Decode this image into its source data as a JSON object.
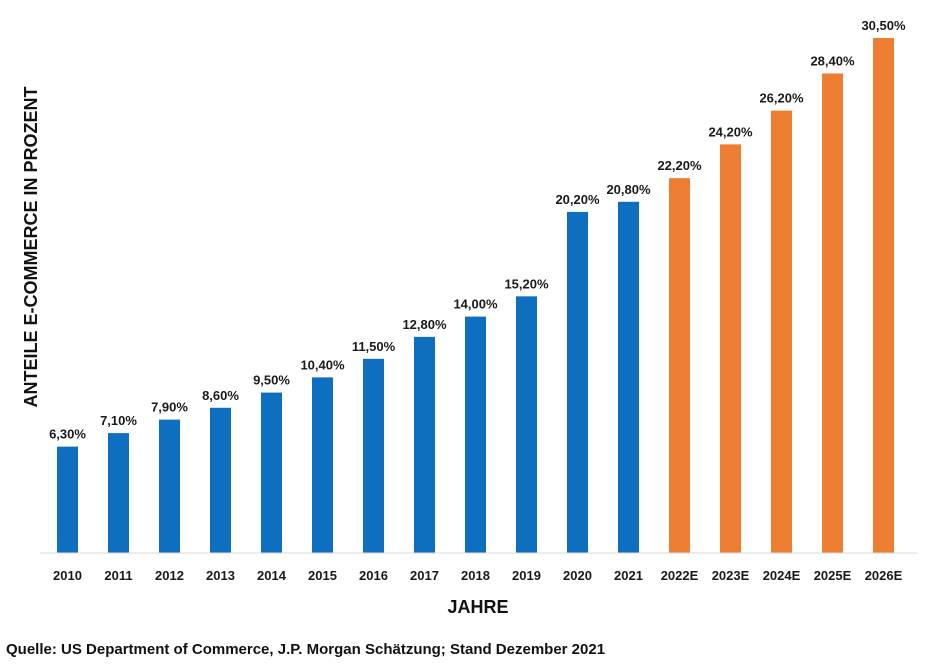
{
  "chart_data": {
    "type": "bar",
    "title": "",
    "xlabel": "JAHRE",
    "ylabel": "ANTEILE E-COMMERCE IN PROZENT",
    "ylim": [
      0,
      30.5
    ],
    "grid": false,
    "categories": [
      "2010",
      "2011",
      "2012",
      "2013",
      "2014",
      "2015",
      "2016",
      "2017",
      "2018",
      "2019",
      "2020",
      "2021",
      "2022E",
      "2023E",
      "2024E",
      "2025E",
      "2026E"
    ],
    "values": [
      6.3,
      7.1,
      7.9,
      8.6,
      9.5,
      10.4,
      11.5,
      12.8,
      14.0,
      15.2,
      20.2,
      20.8,
      22.2,
      24.2,
      26.2,
      28.4,
      30.5
    ],
    "value_labels": [
      "6,30%",
      "7,10%",
      "7,90%",
      "8,60%",
      "9,50%",
      "10,40%",
      "11,50%",
      "12,80%",
      "14,00%",
      "15,20%",
      "20,20%",
      "20,80%",
      "22,20%",
      "24,20%",
      "26,20%",
      "28,40%",
      "30,50%"
    ],
    "kind": [
      "actual",
      "actual",
      "actual",
      "actual",
      "actual",
      "actual",
      "actual",
      "actual",
      "actual",
      "actual",
      "actual",
      "actual",
      "estimate",
      "estimate",
      "estimate",
      "estimate",
      "estimate"
    ],
    "colors": {
      "actual": "#0e6fc0",
      "estimate": "#ed7d31",
      "axis": "#d9d9d9"
    }
  },
  "footer": {
    "source": "Quelle: US Department of Commerce, J.P. Morgan Schätzung; Stand Dezember 2021"
  }
}
